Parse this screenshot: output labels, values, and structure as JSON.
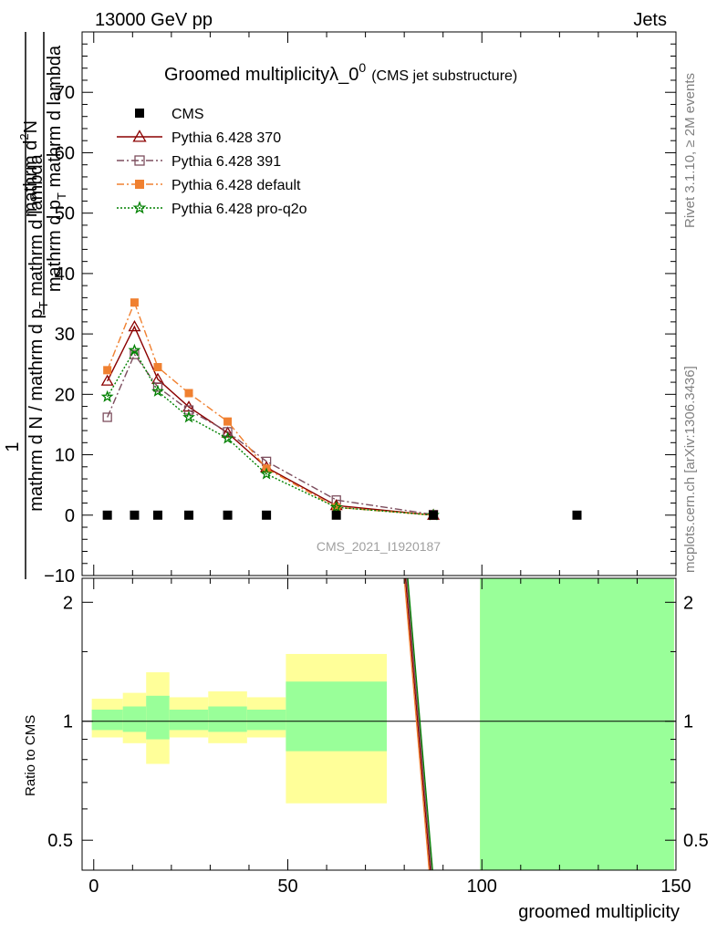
{
  "header": {
    "left": "13000 GeV pp",
    "right": "Jets"
  },
  "side_labels": {
    "rivet": "Rivet 3.1.10, ≥ 2M events",
    "mcplots": "mcplots.cern.ch [arXiv:1306.3436]"
  },
  "watermark": "CMS_2021_I1920187",
  "chart_data": [
    {
      "type": "line",
      "title_main": "Groomed multiplicityλ_0",
      "title_sup": "0",
      "title_sub": "(CMS jet substructure)",
      "ylabel_lines": [
        "mathrm d",
        "N",
        "mathrm d p",
        "mathrm d lambda",
        "1",
        "mathrm d N / mathrm d p",
        "mathrm d p",
        "mathrm d lambda"
      ],
      "ylabel_numer": "mathrm d²N",
      "ylabel_numer_text": "mathrm d",
      "ylabel_numer_sup": "2",
      "ylabel_numer_rest": "N",
      "ylabel_denom_text": "mathrm d p",
      "ylabel_denom_sub": "T",
      "ylabel_denom_rest": " mathrm d lambda",
      "ylabel_one": "1",
      "ylabel_frac_text": "mathrm d N / mathrm d p",
      "ylabel_frac_sub": "T",
      "ylabel_frac_rest": " mathrm d lambda",
      "xlim": [
        -3,
        150
      ],
      "ylim": [
        -10,
        80
      ],
      "yticks": [
        -10,
        0,
        10,
        20,
        30,
        40,
        50,
        60,
        70
      ],
      "legend_position": "top-left",
      "series": [
        {
          "name": "CMS",
          "color": "#000000",
          "marker": "square-filled",
          "style": "none",
          "x": [
            3.5,
            10.5,
            16.5,
            24.5,
            34.5,
            44.5,
            62.5,
            87.5,
            124.5
          ],
          "y": [
            0,
            0,
            0,
            0,
            0,
            0,
            0,
            0,
            0
          ]
        },
        {
          "name": "Pythia 6.428 370",
          "color": "#8b0000",
          "marker": "triangle-open",
          "style": "solid",
          "x": [
            3.5,
            10.5,
            16.5,
            24.5,
            34.5,
            44.5,
            62.5,
            87.5
          ],
          "y": [
            22.2,
            31.2,
            22.5,
            17.9,
            13.6,
            7.9,
            1.6,
            0.0
          ]
        },
        {
          "name": "Pythia 6.428 391",
          "color": "#7d4e5e",
          "marker": "square-open",
          "style": "dashdot",
          "x": [
            3.5,
            10.5,
            16.5,
            24.5,
            34.5,
            44.5,
            62.5,
            87.5
          ],
          "y": [
            16.2,
            26.6,
            21.2,
            17.4,
            13.8,
            8.9,
            2.5,
            0.1
          ]
        },
        {
          "name": "Pythia 6.428 default",
          "color": "#f08030",
          "marker": "square-filled",
          "style": "dashdot",
          "x": [
            3.5,
            10.5,
            16.5,
            24.5,
            34.5,
            44.5,
            62.5,
            87.5
          ],
          "y": [
            24.0,
            35.2,
            24.5,
            20.2,
            15.5,
            7.7,
            1.3,
            0.0
          ]
        },
        {
          "name": "Pythia 6.428 pro-q2o",
          "color": "#008000",
          "marker": "star-open",
          "style": "dotted",
          "x": [
            3.5,
            10.5,
            16.5,
            24.5,
            34.5,
            44.5,
            62.5,
            87.5
          ],
          "y": [
            19.6,
            27.3,
            20.5,
            16.2,
            12.7,
            6.8,
            1.3,
            0.0
          ]
        }
      ]
    },
    {
      "type": "line",
      "ylabel": "Ratio to CMS",
      "xlabel": "groomed multiplicity",
      "xlim": [
        -3,
        150
      ],
      "ylim": [
        0.42,
        2.3
      ],
      "yscale": "log",
      "yticks": [
        0.5,
        1,
        2
      ],
      "xticks": [
        0,
        50,
        100,
        150
      ],
      "reference_line": 1,
      "bands": [
        {
          "x0": -0.5,
          "x1": 7.5,
          "yellow": [
            0.91,
            1.14
          ],
          "green": [
            0.95,
            1.07
          ]
        },
        {
          "x0": 7.5,
          "x1": 13.5,
          "yellow": [
            0.88,
            1.18
          ],
          "green": [
            0.94,
            1.09
          ]
        },
        {
          "x0": 13.5,
          "x1": 19.5,
          "yellow": [
            0.78,
            1.33
          ],
          "green": [
            0.9,
            1.16
          ]
        },
        {
          "x0": 19.5,
          "x1": 29.5,
          "yellow": [
            0.91,
            1.15
          ],
          "green": [
            0.95,
            1.07
          ]
        },
        {
          "x0": 29.5,
          "x1": 39.5,
          "yellow": [
            0.88,
            1.19
          ],
          "green": [
            0.94,
            1.09
          ]
        },
        {
          "x0": 39.5,
          "x1": 49.5,
          "yellow": [
            0.91,
            1.15
          ],
          "green": [
            0.95,
            1.07
          ]
        },
        {
          "x0": 49.5,
          "x1": 75.5,
          "yellow": [
            0.62,
            1.48
          ],
          "green": [
            0.84,
            1.26
          ]
        },
        {
          "x0": 99.5,
          "x1": 149.5,
          "yellow": [
            0.42,
            2.3
          ],
          "green": [
            0.42,
            2.3
          ]
        }
      ],
      "ratio_lines": [
        {
          "color": "#8b0000",
          "x": [
            80.3,
            86.7
          ],
          "y": [
            2.3,
            0.42
          ]
        },
        {
          "color": "#7d4e5e",
          "x": [
            80.6,
            87.0
          ],
          "y": [
            2.3,
            0.42
          ]
        },
        {
          "color": "#f08030",
          "x": [
            80.0,
            86.4
          ],
          "y": [
            2.3,
            0.42
          ]
        },
        {
          "color": "#008000",
          "x": [
            80.9,
            87.3
          ],
          "y": [
            2.3,
            0.42
          ]
        }
      ],
      "colors": {
        "band_yellow": "#ffff99",
        "band_green": "#99ff99"
      }
    }
  ]
}
